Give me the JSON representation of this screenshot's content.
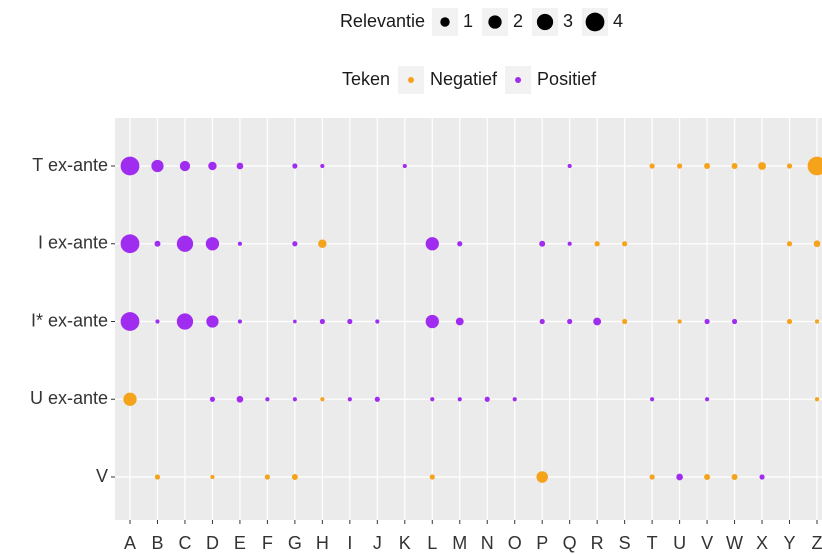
{
  "chart_data": {
    "type": "bubble-grid",
    "categories": [
      "A",
      "B",
      "C",
      "D",
      "E",
      "F",
      "G",
      "H",
      "I",
      "J",
      "K",
      "L",
      "M",
      "N",
      "O",
      "P",
      "Q",
      "R",
      "S",
      "T",
      "U",
      "V",
      "W",
      "X",
      "Y",
      "Z"
    ],
    "y_categories": [
      "T ex-ante",
      "I ex-ante",
      "I* ex-ante",
      "U ex-ante",
      "V"
    ],
    "size_legend": {
      "title": "Relevantie",
      "values": [
        1,
        2,
        3,
        4
      ]
    },
    "color_legend_title": "Teken",
    "series": [
      {
        "name": "Negatief",
        "color": "#f5a31b",
        "values": [
          [
            null,
            null,
            null,
            null,
            null,
            null,
            null,
            null,
            null,
            null,
            null,
            null,
            null,
            null,
            null,
            null,
            null,
            null,
            null,
            0.3,
            0.3,
            0.4,
            0.4,
            0.7,
            0.3,
            4
          ],
          [
            null,
            null,
            null,
            null,
            null,
            null,
            null,
            0.8,
            null,
            null,
            null,
            null,
            null,
            null,
            null,
            null,
            null,
            0.3,
            0.3,
            null,
            null,
            null,
            null,
            null,
            0.3,
            0.5
          ],
          [
            null,
            null,
            null,
            null,
            null,
            null,
            null,
            null,
            null,
            null,
            null,
            null,
            null,
            null,
            null,
            null,
            null,
            null,
            0.3,
            null,
            0.2,
            null,
            null,
            null,
            0.3,
            0.2
          ],
          [
            2,
            null,
            null,
            null,
            null,
            null,
            null,
            0.2,
            null,
            null,
            null,
            null,
            null,
            null,
            null,
            null,
            null,
            null,
            null,
            null,
            null,
            null,
            null,
            null,
            null,
            0.2
          ],
          [
            null,
            0.3,
            null,
            0.2,
            null,
            0.3,
            0.4,
            null,
            null,
            null,
            null,
            0.3,
            null,
            null,
            null,
            1.5,
            null,
            null,
            null,
            0.3,
            null,
            0.4,
            0.4,
            null,
            null,
            null
          ]
        ]
      },
      {
        "name": "Positief",
        "color": "#a02cf0",
        "values": [
          [
            4,
            1.7,
            1.2,
            0.8,
            0.5,
            null,
            0.3,
            0.2,
            null,
            null,
            0.2,
            null,
            null,
            null,
            null,
            null,
            0.2,
            null,
            null,
            null,
            null,
            null,
            null,
            null,
            null,
            null
          ],
          [
            4,
            0.4,
            3,
            2,
            0.2,
            null,
            0.3,
            null,
            null,
            null,
            null,
            2,
            0.3,
            null,
            null,
            0.4,
            0.2,
            null,
            null,
            null,
            null,
            null,
            null,
            null,
            null,
            null
          ],
          [
            4,
            0.2,
            3,
            1.7,
            0.2,
            null,
            0.15,
            0.3,
            0.3,
            0.2,
            null,
            2,
            0.7,
            null,
            null,
            0.3,
            0.3,
            0.7,
            null,
            null,
            null,
            0.3,
            0.3,
            null,
            null,
            null
          ],
          [
            null,
            null,
            null,
            0.3,
            0.5,
            0.2,
            0.2,
            null,
            0.2,
            0.3,
            null,
            0.2,
            0.2,
            0.3,
            0.2,
            null,
            null,
            null,
            null,
            0.2,
            null,
            0.2,
            null,
            null,
            null,
            null
          ],
          [
            null,
            null,
            null,
            null,
            null,
            null,
            null,
            null,
            null,
            null,
            null,
            null,
            null,
            null,
            null,
            null,
            null,
            null,
            null,
            null,
            0.5,
            null,
            null,
            0.3,
            null,
            null
          ]
        ]
      }
    ]
  }
}
